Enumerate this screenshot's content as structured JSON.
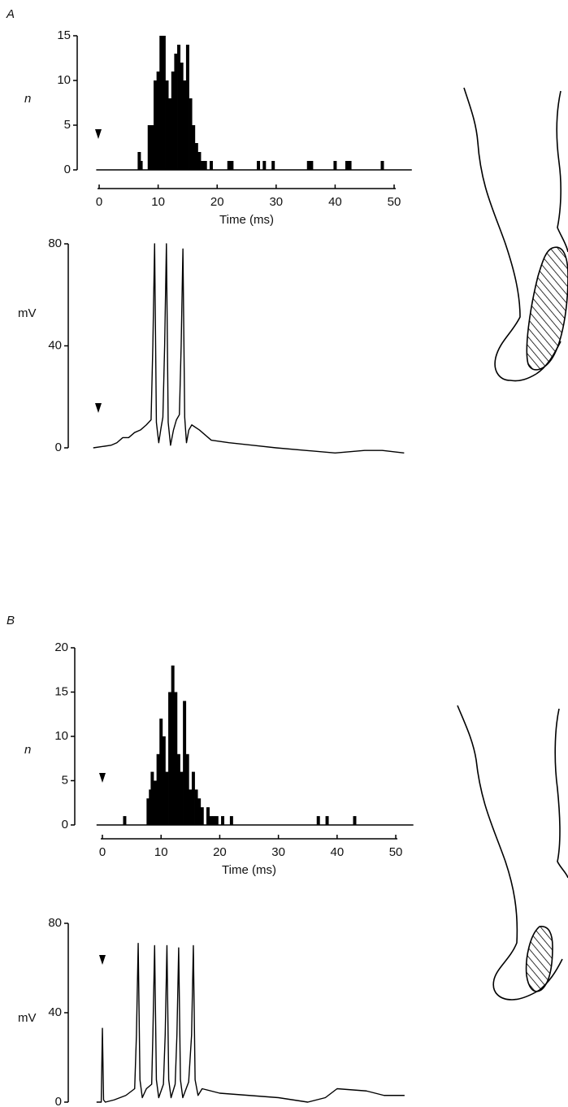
{
  "chart_data": [
    {
      "type": "bar",
      "panel": "A",
      "ylabel": "n",
      "xlabel": "Time (ms)",
      "color": "#000000",
      "x": [
        6.8,
        7.1,
        8.5,
        9,
        9.5,
        10,
        10.5,
        11,
        11.5,
        12,
        12.5,
        13,
        13.5,
        14,
        14.5,
        15,
        15.5,
        16,
        16.5,
        17,
        17.5,
        18,
        19,
        22,
        22.5,
        27,
        28,
        29.5,
        35.5,
        36,
        40,
        42,
        42.5,
        48
      ],
      "values": [
        2,
        1,
        5,
        5,
        10,
        11,
        15,
        15,
        10,
        8,
        11,
        13,
        14,
        12,
        10,
        14,
        8,
        5,
        3,
        2,
        1,
        1,
        1,
        1,
        1,
        1,
        1,
        1,
        1,
        1,
        1,
        1,
        1,
        1
      ],
      "xlim": [
        -0.5,
        53
      ],
      "ylim": [
        0,
        15
      ],
      "xticks": [
        0,
        10,
        20,
        30,
        40,
        50
      ],
      "yticks": [
        0,
        5,
        10,
        15
      ]
    },
    {
      "type": "line",
      "ylabel": "mV",
      "color": "#000000",
      "x": [
        -1,
        2,
        3,
        4,
        5,
        6,
        7,
        8,
        8.8,
        9.1,
        9.4,
        9.7,
        10.1,
        10.5,
        10.8,
        11.1,
        11.4,
        11.7,
        12.1,
        12.6,
        13.1,
        13.6,
        13.9,
        14.2,
        14.5,
        14.8,
        15.2,
        15.7,
        17,
        19,
        22,
        26,
        30,
        35,
        40,
        45,
        48,
        51.7
      ],
      "values": [
        0,
        1,
        2,
        4,
        4,
        6,
        7,
        9,
        11,
        40,
        80,
        10,
        2,
        8,
        12,
        40,
        80,
        10,
        1,
        7,
        11,
        13,
        40,
        78,
        12,
        2,
        7,
        9,
        7,
        3,
        2,
        1,
        0,
        -1,
        -2,
        -1,
        -1,
        -2
      ],
      "xlim": [
        -0.5,
        53
      ],
      "ylim": [
        0,
        80
      ],
      "yticks": [
        0,
        40,
        80
      ]
    },
    {
      "type": "bar",
      "panel": "B",
      "ylabel": "n",
      "xlabel": "Time (ms)",
      "color": "#000000",
      "x": [
        3.8,
        7.8,
        8.2,
        8.5,
        9,
        9.5,
        10,
        10.5,
        11,
        11.5,
        12,
        12.5,
        13,
        13.5,
        14,
        14.5,
        15,
        15.5,
        16,
        16.5,
        17,
        18,
        18.5,
        19,
        19.5,
        20.5,
        22,
        36.8,
        38.3,
        43
      ],
      "values": [
        1,
        3,
        4,
        6,
        5,
        8,
        12,
        10,
        6,
        15,
        18,
        15,
        8,
        6,
        14,
        8,
        4,
        6,
        4,
        3,
        2,
        2,
        1,
        1,
        1,
        1,
        1,
        1,
        1,
        1
      ],
      "xlim": [
        -1,
        53
      ],
      "ylim": [
        0,
        20
      ],
      "xticks": [
        0,
        10,
        20,
        30,
        40,
        50
      ],
      "yticks": [
        0,
        5,
        10,
        15,
        20
      ]
    },
    {
      "type": "line",
      "ylabel": "mV",
      "color": "#000000",
      "x": [
        -1,
        -0.2,
        0,
        0.2,
        0.5,
        2,
        4,
        5.5,
        5.8,
        6.1,
        6.4,
        6.8,
        7.5,
        8.4,
        8.6,
        8.9,
        9.2,
        9.6,
        10.4,
        10.7,
        11,
        11.3,
        11.7,
        12.4,
        12.7,
        13,
        13.3,
        13.7,
        14.7,
        15.2,
        15.5,
        15.8,
        16.3,
        17,
        20,
        25,
        30,
        35,
        38,
        40,
        45,
        48,
        51.5
      ],
      "values": [
        0,
        0,
        33,
        1,
        0,
        1,
        3,
        6,
        30,
        71,
        10,
        2,
        6,
        8,
        30,
        70,
        10,
        2,
        8,
        30,
        70,
        10,
        2,
        8,
        30,
        69,
        10,
        2,
        9,
        30,
        70,
        10,
        3,
        6,
        4,
        3,
        2,
        0,
        2,
        6,
        5,
        3,
        3
      ],
      "xlim": [
        -1,
        53
      ],
      "ylim": [
        0,
        80
      ],
      "yticks": [
        0,
        40,
        80
      ]
    }
  ]
}
